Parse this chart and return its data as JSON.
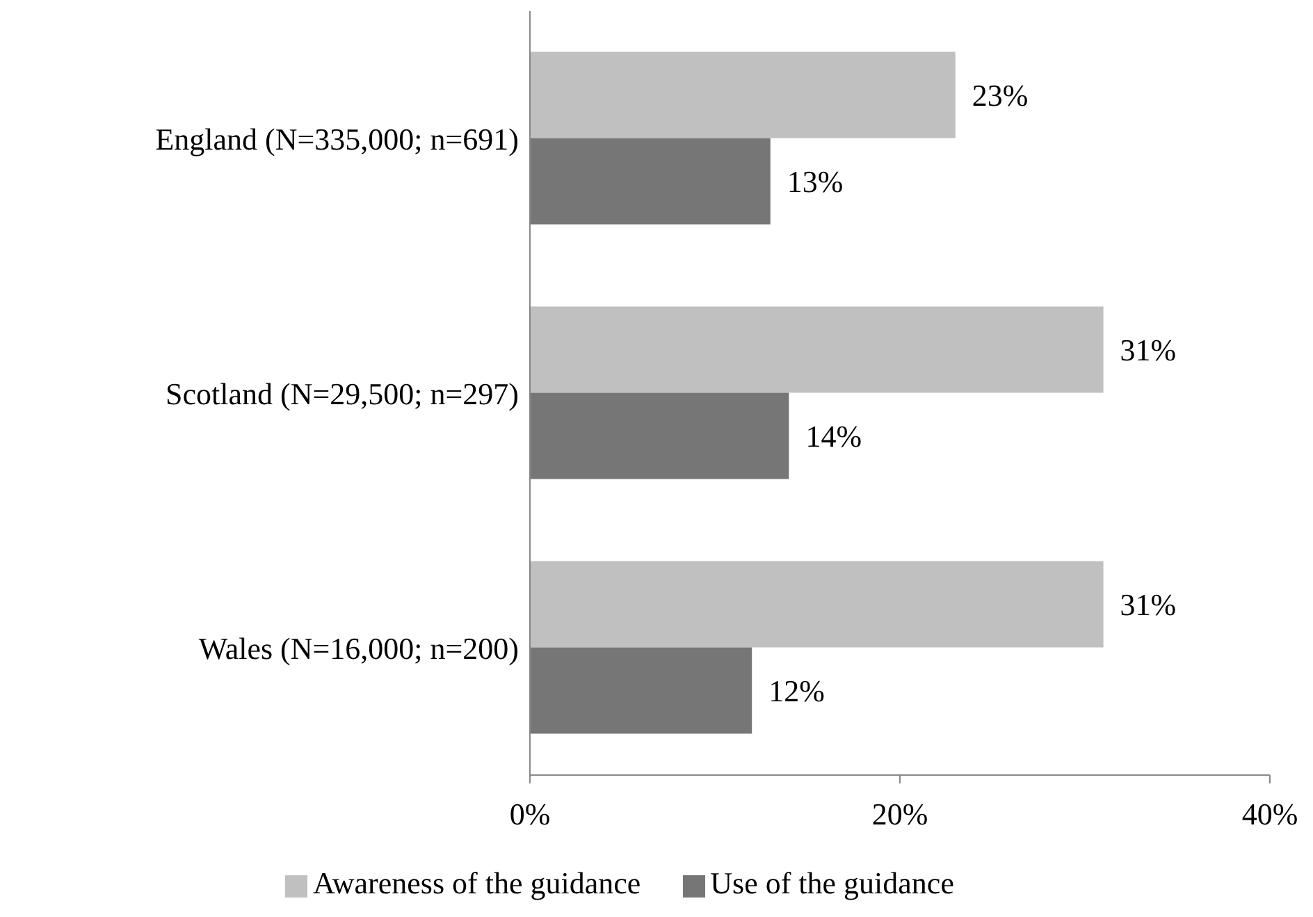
{
  "chart_data": {
    "type": "bar",
    "orientation": "horizontal",
    "categories": [
      "England (N=335,000; n=691)",
      "Scotland (N=29,500; n=297)",
      "Wales (N=16,000; n=200)"
    ],
    "series": [
      {
        "name": "Awareness of the guidance",
        "color": "#c0c0c0",
        "values": [
          23,
          31,
          31
        ],
        "value_labels": [
          "23%",
          "31%",
          "31%"
        ]
      },
      {
        "name": "Use of the guidance",
        "color": "#767676",
        "values": [
          13,
          14,
          12
        ],
        "value_labels": [
          "13%",
          "14%",
          "12%"
        ]
      }
    ],
    "xlim": [
      0,
      40
    ],
    "xticks": [
      {
        "value": 0,
        "label": "0%"
      },
      {
        "value": 20,
        "label": "20%"
      },
      {
        "value": 40,
        "label": "40%"
      }
    ],
    "grid": false,
    "legend": "bottom"
  }
}
